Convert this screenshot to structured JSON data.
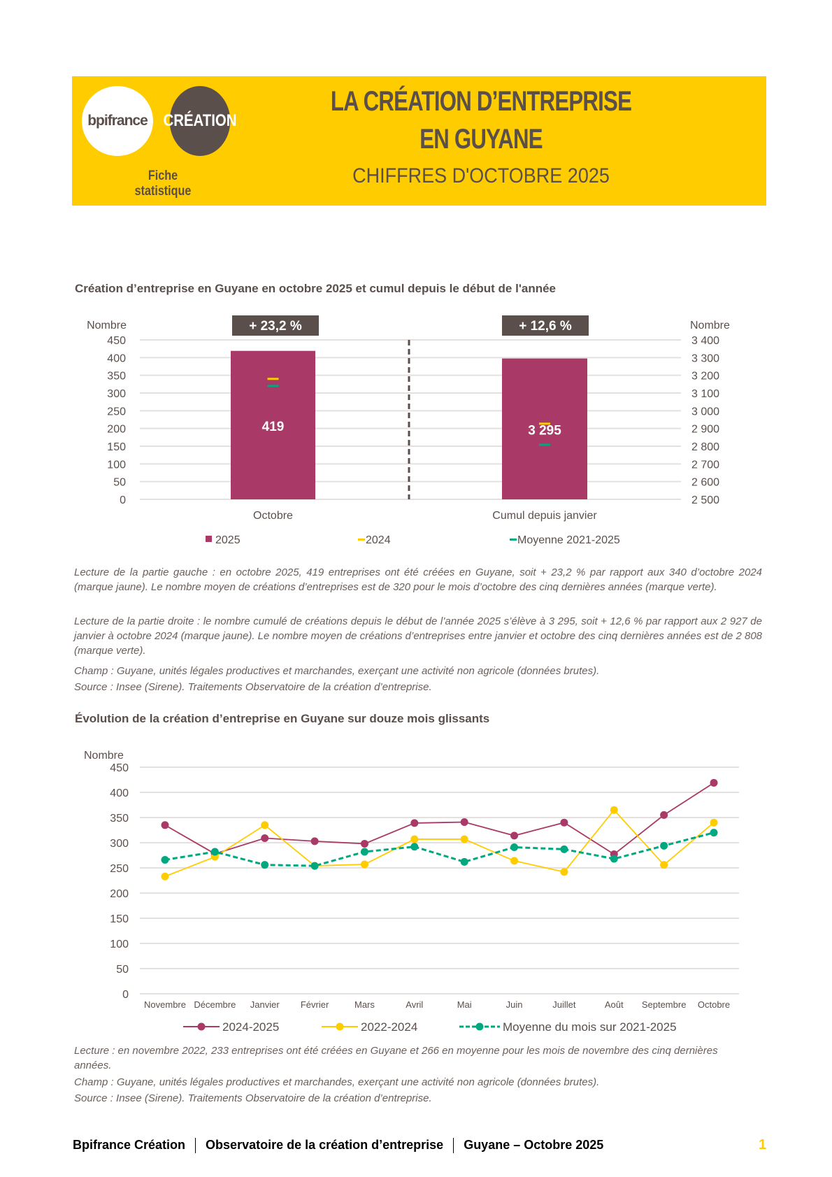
{
  "header": {
    "logo_bpifrance": "bpifrance",
    "logo_creation": "CRÉATION",
    "fiche": "Fiche statistique",
    "title_line1": "LA CRÉATION D’ENTREPRISE",
    "title_line2": "EN GUYANE",
    "subtitle": "CHIFFRES D'OCTOBRE 2025",
    "background_color": "#ffcc00"
  },
  "chart1": {
    "title": "Création d’entreprise en Guyane en octobre 2025 et cumul depuis le début de l'année",
    "notes": [
      "Lecture de la partie gauche : en octobre 2025, 419 entreprises ont été créées en Guyane, soit + 23,2 % par rapport aux 340 d’octobre 2024 (marque jaune). Le nombre moyen de créations d’entreprises est de 320 pour le mois d’octobre des cinq dernières années (marque verte).",
      "Lecture de la partie droite : le nombre cumulé de créations depuis le début de l’année 2025 s’élève à 3 295, soit + 12,6 % par rapport aux 2 927 de janvier à octobre 2024 (marque jaune). Le nombre moyen de créations d’entreprises entre janvier et octobre des cinq dernières années est de 2 808 (marque verte).",
      "Champ : Guyane, unités légales productives et marchandes, exerçant une activité non agricole (données brutes).",
      "Source : Insee (Sirene). Traitements Observatoire de la création d’entreprise."
    ]
  },
  "chart2": {
    "title": "Évolution de la création d’entreprise en Guyane sur douze mois glissants",
    "notes": [
      "Lecture : en novembre 2022, 233 entreprises ont été créées en Guyane et 266 en moyenne pour les mois de novembre des cinq dernières années.",
      "Champ : Guyane, unités légales productives et marchandes, exerçant une activité non agricole (données brutes).",
      "Source : Insee (Sirene). Traitements Observatoire de la création d’entreprise."
    ]
  },
  "chart_data": [
    {
      "type": "bar",
      "categories": [
        "Octobre",
        "Cumul depuis janvier"
      ],
      "ylabel_left": "Nombre",
      "ylabel_right": "Nombre",
      "ylim_left": [
        0,
        450
      ],
      "yticks_left": [
        "450",
        "400",
        "350",
        "300",
        "250",
        "200",
        "150",
        "100",
        "50",
        "0"
      ],
      "ylim_right": [
        2500,
        3400
      ],
      "yticks_right": [
        "3 400",
        "3 300",
        "3 200",
        "3 100",
        "3 000",
        "2 900",
        "2 800",
        "2 700",
        "2 600",
        "2 500"
      ],
      "series": [
        {
          "name": "2025",
          "values": [
            419,
            3295
          ],
          "labels": [
            "419",
            "3 295"
          ],
          "color": "#a93a67"
        },
        {
          "name": "2024",
          "values": [
            340,
            2927
          ],
          "color": "#ffcc00"
        },
        {
          "name": "Moyenne 2021-2025",
          "values": [
            320,
            2808
          ],
          "color": "#00a880"
        }
      ],
      "change_labels": [
        "+ 23,2 %",
        "+ 12,6 %"
      ],
      "grid": true,
      "legend": "bottom"
    },
    {
      "type": "line",
      "categories": [
        "Novembre",
        "Décembre",
        "Janvier",
        "Février",
        "Mars",
        "Avril",
        "Mai",
        "Juin",
        "Juillet",
        "Août",
        "Septembre",
        "Octobre"
      ],
      "ylabel": "Nombre",
      "ylim": [
        0,
        450
      ],
      "yticks": [
        "450",
        "400",
        "350",
        "300",
        "250",
        "200",
        "150",
        "100",
        "50",
        "0"
      ],
      "series": [
        {
          "name": "2024-2025",
          "values": [
            335,
            278,
            309,
            303,
            298,
            339,
            341,
            314,
            340,
            277,
            355,
            419
          ],
          "color": "#a93a67",
          "style": "solid"
        },
        {
          "name": "2022-2024",
          "values": [
            233,
            272,
            335,
            254,
            257,
            307,
            307,
            264,
            242,
            365,
            256,
            340
          ],
          "color": "#ffcc00",
          "style": "solid"
        },
        {
          "name": "Moyenne du mois sur 2021-2025",
          "values": [
            266,
            282,
            256,
            254,
            282,
            292,
            262,
            291,
            287,
            268,
            294,
            320
          ],
          "color": "#00a880",
          "style": "dashed"
        }
      ],
      "grid": true,
      "legend": "bottom"
    }
  ],
  "footer": {
    "part1": "Bpifrance Création",
    "part2": "Observatoire de la création d’entreprise",
    "part3": "Guyane – Octobre 2025",
    "page": "1"
  }
}
